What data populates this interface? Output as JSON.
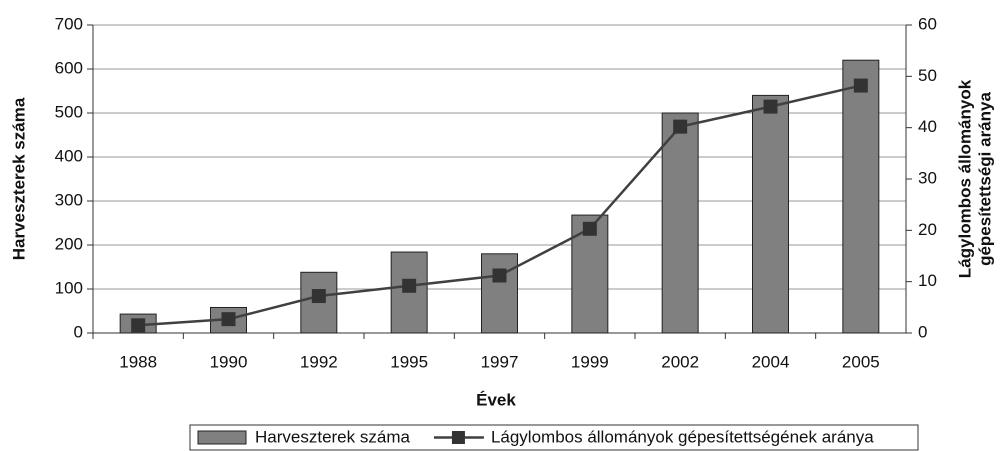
{
  "chart_data": {
    "type": "bar",
    "xlabel": "Évek",
    "ylabel": "Harveszterek száma",
    "y2label": [
      "Lágylombos állományok",
      "gépesítettségi aránya"
    ],
    "categories": [
      "1988",
      "1990",
      "1992",
      "1995",
      "1997",
      "1999",
      "2002",
      "2004",
      "2005"
    ],
    "series": [
      {
        "name": "Harveszterek száma",
        "type": "bar",
        "color": "#808080",
        "values": [
          43,
          58,
          138,
          184,
          180,
          268,
          500,
          540,
          620
        ]
      },
      {
        "name": "Lágylombos állományok gépesítettségének aránya",
        "type": "line",
        "axis": "y2",
        "color": "#404040",
        "values": [
          1.5,
          2.7,
          7.2,
          9.2,
          11.2,
          20.3,
          40.2,
          44.1,
          48.2
        ]
      }
    ],
    "ylim": [
      0,
      700
    ],
    "yticks": [
      0,
      100,
      200,
      300,
      400,
      500,
      600,
      700
    ],
    "y2lim": [
      0,
      60
    ],
    "y2ticks": [
      0,
      10,
      20,
      30,
      40,
      50,
      60
    ],
    "grid": true,
    "legend": "bottom"
  }
}
